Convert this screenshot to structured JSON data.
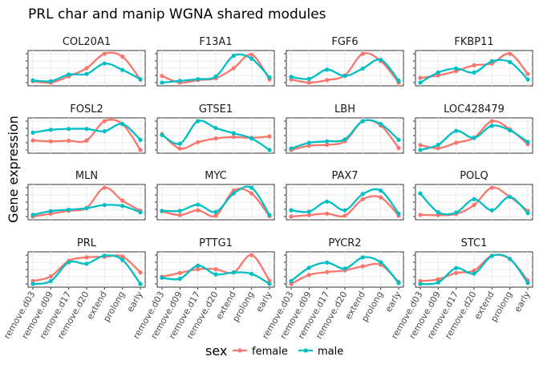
{
  "title": "PRL char and manip WGNA shared modules",
  "chart_data": {
    "type": "line",
    "title": "PRL char and manip WGNA shared modules",
    "xlabel": "",
    "ylabel": "Gene expression",
    "categories": [
      "remove.d03",
      "remove.d09",
      "remove.d17",
      "remove.d20",
      "extend",
      "prolong",
      "early"
    ],
    "legend": {
      "title": "sex",
      "position": "bottom",
      "entries": [
        "female",
        "male"
      ]
    },
    "colors": {
      "female": "#F8766D",
      "male": "#00BFC4"
    },
    "grid": true,
    "y_scale": "free (relative, per facet, 0-1)",
    "facets": [
      {
        "gene": "COL20A1",
        "series": [
          {
            "name": "female",
            "values": [
              0.05,
              0.0,
              0.22,
              0.5,
              1.0,
              0.9,
              0.1
            ]
          },
          {
            "name": "male",
            "values": [
              0.08,
              0.05,
              0.28,
              0.3,
              0.66,
              0.44,
              0.12
            ]
          }
        ]
      },
      {
        "gene": "F13A1",
        "series": [
          {
            "name": "female",
            "values": [
              0.23,
              0.0,
              0.09,
              0.15,
              0.5,
              0.97,
              0.11
            ]
          },
          {
            "name": "male",
            "values": [
              0.0,
              0.06,
              0.12,
              0.21,
              0.93,
              0.83,
              0.18
            ]
          }
        ]
      },
      {
        "gene": "FGF6",
        "series": [
          {
            "name": "female",
            "values": [
              0.11,
              0.0,
              0.09,
              0.25,
              1.0,
              0.75,
              0.0
            ]
          },
          {
            "name": "male",
            "values": [
              0.2,
              0.13,
              0.45,
              0.23,
              0.49,
              0.79,
              0.07
            ]
          }
        ]
      },
      {
        "gene": "FKBP11",
        "series": [
          {
            "name": "female",
            "values": [
              0.16,
              0.25,
              0.4,
              0.6,
              0.66,
              1.0,
              0.3
            ]
          },
          {
            "name": "male",
            "values": [
              0.0,
              0.35,
              0.49,
              0.35,
              0.74,
              0.71,
              0.11
            ]
          }
        ]
      },
      {
        "gene": "FOSL2",
        "series": [
          {
            "name": "female",
            "values": [
              0.33,
              0.3,
              0.32,
              0.33,
              1.0,
              0.9,
              0.0
            ]
          },
          {
            "name": "male",
            "values": [
              0.6,
              0.7,
              0.73,
              0.73,
              0.65,
              0.9,
              0.35
            ]
          }
        ]
      },
      {
        "gene": "GTSE1",
        "series": [
          {
            "name": "female",
            "values": [
              0.55,
              0.05,
              0.27,
              0.4,
              0.45,
              0.42,
              0.47
            ]
          },
          {
            "name": "male",
            "values": [
              0.52,
              0.22,
              1.0,
              0.76,
              0.58,
              0.4,
              0.0
            ]
          }
        ]
      },
      {
        "gene": "LBH",
        "series": [
          {
            "name": "female",
            "values": [
              0.0,
              0.15,
              0.18,
              0.3,
              1.0,
              0.85,
              0.07
            ]
          },
          {
            "name": "male",
            "values": [
              0.05,
              0.25,
              0.3,
              0.37,
              1.0,
              0.9,
              0.35
            ]
          }
        ]
      },
      {
        "gene": "LOC428479",
        "series": [
          {
            "name": "female",
            "values": [
              0.17,
              0.06,
              0.25,
              0.42,
              1.0,
              0.72,
              0.2
            ]
          },
          {
            "name": "male",
            "values": [
              0.0,
              0.18,
              0.66,
              0.42,
              0.84,
              0.68,
              0.28
            ]
          }
        ]
      },
      {
        "gene": "MLN",
        "series": [
          {
            "name": "female",
            "values": [
              0.0,
              0.1,
              0.2,
              0.3,
              1.0,
              0.55,
              0.2
            ]
          },
          {
            "name": "male",
            "values": [
              0.06,
              0.19,
              0.24,
              0.29,
              0.4,
              0.37,
              0.15
            ]
          }
        ]
      },
      {
        "gene": "MYC",
        "series": [
          {
            "name": "female",
            "values": [
              0.18,
              0.05,
              0.22,
              0.03,
              0.9,
              0.8,
              0.01
            ]
          },
          {
            "name": "male",
            "values": [
              0.2,
              0.2,
              0.41,
              0.16,
              0.8,
              1.0,
              0.05
            ]
          }
        ]
      },
      {
        "gene": "PAX7",
        "series": [
          {
            "name": "female",
            "values": [
              0.0,
              0.05,
              0.1,
              0.03,
              0.6,
              0.66,
              0.03
            ]
          },
          {
            "name": "male",
            "values": [
              0.22,
              0.17,
              0.52,
              0.22,
              0.78,
              0.9,
              0.1
            ]
          }
        ]
      },
      {
        "gene": "POLQ",
        "series": [
          {
            "name": "female",
            "values": [
              0.06,
              0.05,
              0.09,
              0.4,
              1.0,
              0.68,
              0.2
            ]
          },
          {
            "name": "male",
            "values": [
              0.8,
              0.15,
              0.14,
              0.6,
              0.22,
              0.68,
              0.12
            ]
          }
        ]
      },
      {
        "gene": "PRL",
        "series": [
          {
            "name": "female",
            "values": [
              0.1,
              0.26,
              0.8,
              0.92,
              0.94,
              0.95,
              0.4
            ]
          },
          {
            "name": "male",
            "values": [
              0.0,
              0.1,
              0.75,
              0.7,
              0.98,
              0.83,
              0.0
            ]
          }
        ]
      },
      {
        "gene": "PTTG1",
        "series": [
          {
            "name": "female",
            "values": [
              0.25,
              0.38,
              0.51,
              0.51,
              0.4,
              1.0,
              0.11
            ]
          },
          {
            "name": "male",
            "values": [
              0.21,
              0.18,
              0.63,
              0.33,
              0.4,
              0.35,
              0.0
            ]
          }
        ]
      },
      {
        "gene": "PYCR2",
        "series": [
          {
            "name": "female",
            "values": [
              0.0,
              0.31,
              0.41,
              0.47,
              0.61,
              0.66,
              0.07
            ]
          },
          {
            "name": "male",
            "values": [
              0.1,
              0.56,
              0.74,
              0.53,
              0.92,
              0.75,
              0.03
            ]
          }
        ]
      },
      {
        "gene": "STC1",
        "series": [
          {
            "name": "female",
            "values": [
              0.1,
              0.16,
              0.38,
              0.46,
              0.98,
              0.86,
              0.12
            ]
          },
          {
            "name": "male",
            "values": [
              0.0,
              0.05,
              0.55,
              0.36,
              0.97,
              0.87,
              0.03
            ]
          }
        ]
      }
    ]
  }
}
